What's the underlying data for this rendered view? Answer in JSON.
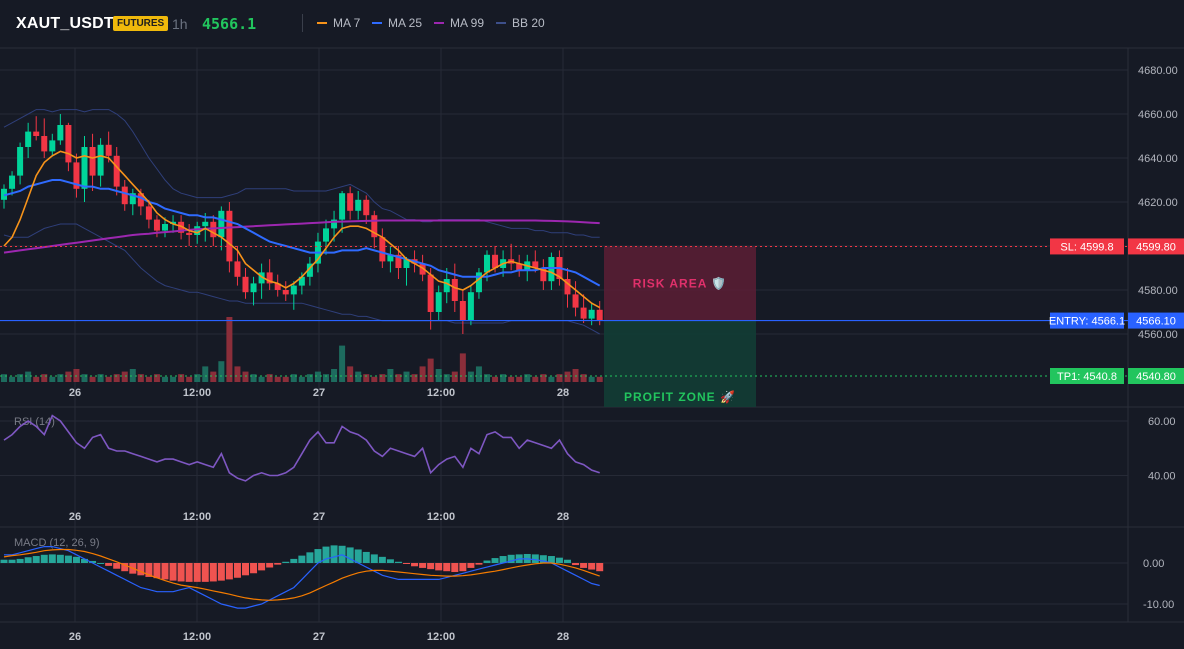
{
  "header": {
    "symbol": "XAUT_USDT",
    "badge": "FUTURES",
    "timeframe": "1h",
    "price": "4566.1",
    "legend": [
      {
        "label": "MA 7",
        "color": "#f7931a"
      },
      {
        "label": "MA 25",
        "color": "#2f6bff"
      },
      {
        "label": "MA 99",
        "color": "#9c27b0"
      },
      {
        "label": "BB 20",
        "color": "#3d4f8a"
      }
    ]
  },
  "colors": {
    "up": "#00d49a",
    "down": "#f23645",
    "vol_up": "#1d6b5e",
    "vol_down": "#8b2e3a",
    "rsi": "#7e57c2",
    "macd_line": "#2962ff",
    "signal_line": "#f57c00",
    "hist_pos": "#26a69a",
    "hist_neg": "#ef5350"
  },
  "price_axis": {
    "ticks": [
      "4680.00",
      "4660.00",
      "4640.00",
      "4620.00",
      "4600.00",
      "4580.00",
      "4560.00"
    ],
    "range": [
      4555,
      4685
    ]
  },
  "levels": {
    "sl": {
      "value": 4599.8,
      "tag": "SL: 4599.8",
      "price": "4599.80",
      "color": "#f23645"
    },
    "entry": {
      "value": 4566.1,
      "tag": "ENTRY: 4566.1",
      "price": "4566.10",
      "color": "#2962ff"
    },
    "tp1": {
      "value": 4540.8,
      "tag": "TP1: 4540.8",
      "price": "4540.80",
      "color": "#22c55e"
    }
  },
  "zones": {
    "risk_label": "RISK AREA 🛡️",
    "profit_label": "PROFIT ZONE 🚀"
  },
  "time_labels": [
    "26",
    "12:00",
    "27",
    "12:00",
    "28"
  ],
  "rsi": {
    "label": "RSI (14)",
    "ticks": [
      "60.00",
      "40.00"
    ],
    "range": [
      35,
      65
    ]
  },
  "macd": {
    "label": "MACD (12, 26, 9)",
    "ticks": [
      "0.00",
      "-10.00"
    ],
    "range": [
      -12,
      6
    ]
  },
  "chart_data": {
    "candles": [
      [
        4621,
        4628,
        4617,
        4626
      ],
      [
        4626,
        4634,
        4623,
        4632
      ],
      [
        4632,
        4647,
        4628,
        4645
      ],
      [
        4645,
        4656,
        4640,
        4652
      ],
      [
        4652,
        4659,
        4648,
        4650
      ],
      [
        4650,
        4658,
        4640,
        4643
      ],
      [
        4643,
        4651,
        4641,
        4648
      ],
      [
        4648,
        4660,
        4646,
        4655
      ],
      [
        4655,
        4656,
        4634,
        4638
      ],
      [
        4638,
        4642,
        4622,
        4626
      ],
      [
        4626,
        4650,
        4620,
        4645
      ],
      [
        4645,
        4651,
        4625,
        4632
      ],
      [
        4632,
        4649,
        4627,
        4646
      ],
      [
        4646,
        4652,
        4638,
        4641
      ],
      [
        4641,
        4645,
        4623,
        4627
      ],
      [
        4627,
        4630,
        4616,
        4619
      ],
      [
        4619,
        4626,
        4614,
        4624
      ],
      [
        4624,
        4626,
        4614,
        4618
      ],
      [
        4618,
        4621,
        4608,
        4612
      ],
      [
        4612,
        4614,
        4604,
        4607
      ],
      [
        4607,
        4613,
        4604,
        4610
      ],
      [
        4610,
        4614,
        4606,
        4611
      ],
      [
        4611,
        4614,
        4603,
        4606
      ],
      [
        4606,
        4610,
        4600,
        4605
      ],
      [
        4605,
        4611,
        4601,
        4609
      ],
      [
        4609,
        4615,
        4602,
        4611
      ],
      [
        4611,
        4614,
        4600,
        4604
      ],
      [
        4604,
        4618,
        4598,
        4616
      ],
      [
        4616,
        4620,
        4588,
        4593
      ],
      [
        4593,
        4600,
        4582,
        4586
      ],
      [
        4586,
        4590,
        4576,
        4579
      ],
      [
        4579,
        4586,
        4573,
        4583
      ],
      [
        4583,
        4592,
        4576,
        4588
      ],
      [
        4588,
        4594,
        4580,
        4583
      ],
      [
        4583,
        4587,
        4577,
        4580
      ],
      [
        4580,
        4584,
        4575,
        4578
      ],
      [
        4578,
        4584,
        4571,
        4582
      ],
      [
        4582,
        4588,
        4578,
        4586
      ],
      [
        4586,
        4595,
        4582,
        4592
      ],
      [
        4592,
        4606,
        4588,
        4602
      ],
      [
        4602,
        4612,
        4596,
        4608
      ],
      [
        4608,
        4616,
        4602,
        4612
      ],
      [
        4612,
        4625,
        4606,
        4624
      ],
      [
        4624,
        4627,
        4612,
        4616
      ],
      [
        4616,
        4625,
        4612,
        4621
      ],
      [
        4621,
        4623,
        4610,
        4614
      ],
      [
        4614,
        4616,
        4599,
        4604
      ],
      [
        4604,
        4608,
        4590,
        4593
      ],
      [
        4593,
        4600,
        4588,
        4596
      ],
      [
        4596,
        4600,
        4585,
        4590
      ],
      [
        4590,
        4595,
        4582,
        4594
      ],
      [
        4594,
        4598,
        4588,
        4592
      ],
      [
        4592,
        4596,
        4584,
        4587
      ],
      [
        4587,
        4590,
        4562,
        4570
      ],
      [
        4570,
        4582,
        4566,
        4579
      ],
      [
        4579,
        4590,
        4574,
        4585
      ],
      [
        4585,
        4592,
        4570,
        4575
      ],
      [
        4575,
        4580,
        4560,
        4566
      ],
      [
        4566,
        4582,
        4564,
        4579
      ],
      [
        4579,
        4590,
        4576,
        4588
      ],
      [
        4588,
        4598,
        4584,
        4596
      ],
      [
        4596,
        4600,
        4588,
        4590
      ],
      [
        4590,
        4598,
        4586,
        4594
      ],
      [
        4594,
        4601,
        4589,
        4592
      ],
      [
        4592,
        4596,
        4586,
        4589
      ],
      [
        4589,
        4596,
        4584,
        4593
      ],
      [
        4593,
        4598,
        4588,
        4590
      ],
      [
        4590,
        4594,
        4580,
        4584
      ],
      [
        4584,
        4597,
        4580,
        4595
      ],
      [
        4595,
        4598,
        4582,
        4585
      ],
      [
        4585,
        4590,
        4572,
        4578
      ],
      [
        4578,
        4584,
        4568,
        4572
      ],
      [
        4572,
        4578,
        4565,
        4567
      ],
      [
        4567,
        4574,
        4564,
        4571
      ],
      [
        4571,
        4575,
        4564,
        4566
      ]
    ],
    "volume": [
      3,
      2,
      3,
      4,
      2,
      3,
      2,
      3,
      4,
      5,
      3,
      2,
      3,
      2,
      3,
      4,
      5,
      3,
      2,
      3,
      2,
      2,
      3,
      2,
      3,
      6,
      4,
      8,
      25,
      6,
      4,
      3,
      2,
      3,
      2,
      2,
      3,
      2,
      3,
      4,
      3,
      5,
      14,
      6,
      4,
      3,
      2,
      3,
      5,
      3,
      4,
      3,
      6,
      9,
      5,
      3,
      4,
      11,
      4,
      6,
      3,
      2,
      3,
      2,
      2,
      3,
      2,
      3,
      2,
      3,
      4,
      5,
      3,
      2,
      2
    ],
    "ma7": [
      4600,
      4604,
      4612,
      4622,
      4632,
      4638,
      4641,
      4643,
      4642,
      4640,
      4641,
      4640,
      4641,
      4640,
      4636,
      4632,
      4628,
      4624,
      4620,
      4615,
      4612,
      4610,
      4609,
      4607,
      4606,
      4608,
      4606,
      4604,
      4601,
      4598,
      4592,
      4589,
      4586,
      4584,
      4583,
      4581,
      4583,
      4586,
      4590,
      4594,
      4599,
      4604,
      4608,
      4609,
      4609,
      4608,
      4606,
      4604,
      4601,
      4598,
      4594,
      4592,
      4590,
      4587,
      4584,
      4583,
      4581,
      4580,
      4582,
      4585,
      4588,
      4590,
      4592,
      4593,
      4592,
      4591,
      4590,
      4589,
      4588,
      4586,
      4583,
      4580,
      4577,
      4574,
      4572
    ],
    "ma25": [
      4623,
      4624,
      4625,
      4627,
      4628,
      4629,
      4630,
      4630,
      4629,
      4628,
      4627,
      4627,
      4626,
      4626,
      4625,
      4624,
      4623,
      4622,
      4620,
      4619,
      4617,
      4616,
      4615,
      4614,
      4614,
      4613,
      4613,
      4612,
      4611,
      4610,
      4608,
      4606,
      4604,
      4602,
      4601,
      4600,
      4599,
      4598,
      4597,
      4597,
      4597,
      4597,
      4598,
      4598,
      4598,
      4599,
      4598,
      4597,
      4596,
      4595,
      4594,
      4593,
      4592,
      4591,
      4589,
      4588,
      4587,
      4586,
      4586,
      4586,
      4586,
      4587,
      4588,
      4588,
      4589,
      4589,
      4589,
      4590,
      4590,
      4590,
      4589,
      4588,
      4586,
      4584,
      4582
    ],
    "ma99": [
      4597,
      4597.5,
      4598,
      4598.5,
      4599,
      4599.5,
      4600,
      4600.5,
      4601,
      4601.5,
      4602,
      4602.5,
      4603,
      4603.5,
      4604,
      4604.5,
      4605,
      4605.3,
      4605.6,
      4606,
      4606.3,
      4606.6,
      4607,
      4607.3,
      4607.6,
      4607.8,
      4608,
      4608.2,
      4608.4,
      4608.6,
      4608.8,
      4609,
      4609.2,
      4609.4,
      4609.6,
      4609.8,
      4610,
      4610.2,
      4610.4,
      4610.6,
      4610.8,
      4611,
      4611.1,
      4611.2,
      4611.3,
      4611.4,
      4611.5,
      4611.6,
      4611.6,
      4611.6,
      4611.6,
      4611.6,
      4611.6,
      4611.6,
      4611.6,
      4611.6,
      4611.6,
      4611.6,
      4611.6,
      4611.6,
      4611.6,
      4611.6,
      4611.6,
      4611.6,
      4611.6,
      4611.6,
      4611.6,
      4611.5,
      4611.4,
      4611.3,
      4611.2,
      4611,
      4610.8,
      4610.6,
      4610.4
    ],
    "bb_upper": [
      4654,
      4656,
      4658,
      4660,
      4662,
      4662,
      4661,
      4662,
      4662,
      4662,
      4661,
      4662,
      4662,
      4662,
      4660,
      4657,
      4652,
      4646,
      4640,
      4635,
      4630,
      4626,
      4624,
      4623,
      4622,
      4622,
      4622,
      4622,
      4623,
      4624,
      4626,
      4626,
      4626,
      4626,
      4626,
      4626,
      4625,
      4625,
      4625,
      4625,
      4625,
      4626,
      4627,
      4628,
      4626,
      4624,
      4620,
      4617,
      4616,
      4614,
      4612,
      4612,
      4611,
      4611,
      4612,
      4612,
      4612,
      4612,
      4612,
      4612,
      4611,
      4610,
      4609,
      4608,
      4608,
      4608,
      4607,
      4607,
      4606,
      4606,
      4606,
      4605,
      4605,
      4604,
      4604
    ],
    "bb_lower": [
      4605,
      4604,
      4604,
      4604,
      4606,
      4608,
      4609,
      4610,
      4610,
      4610,
      4608,
      4606,
      4604,
      4602,
      4600,
      4598,
      4594,
      4590,
      4587,
      4584,
      4582,
      4581,
      4580,
      4579,
      4579,
      4578,
      4577,
      4576,
      4575,
      4575,
      4574,
      4574,
      4574,
      4574,
      4574,
      4574,
      4574,
      4574,
      4573,
      4572,
      4571,
      4570,
      4569,
      4569,
      4568,
      4568,
      4567,
      4566,
      4566,
      4566,
      4566,
      4566,
      4566,
      4566,
      4566,
      4566,
      4565,
      4565,
      4565,
      4565,
      4565,
      4565,
      4565,
      4566,
      4566,
      4566,
      4566,
      4566,
      4566,
      4566,
      4566,
      4565,
      4564,
      4562,
      4560
    ],
    "rsi_values": [
      53,
      55,
      58,
      60,
      58,
      55,
      62,
      60,
      56,
      52,
      50,
      54,
      55,
      50,
      49,
      49,
      48,
      47,
      46,
      45,
      46,
      46,
      45,
      44,
      45,
      44,
      43,
      48,
      41,
      39,
      38,
      40,
      41,
      40,
      40,
      41,
      43,
      48,
      53,
      56,
      52,
      52,
      58,
      56,
      55,
      53,
      49,
      47,
      50,
      49,
      48,
      47,
      50,
      41,
      44,
      46,
      47,
      43,
      50,
      48,
      55,
      56,
      54,
      54,
      50,
      53,
      52,
      51,
      50,
      53,
      48,
      45,
      44,
      42,
      41
    ],
    "macd_line": [
      2,
      2,
      2.5,
      3,
      3.5,
      4,
      4,
      3.5,
      3,
      2,
      1,
      0,
      -1,
      -2,
      -3,
      -4,
      -5,
      -6,
      -6.5,
      -7,
      -7,
      -7,
      -6.5,
      -6,
      -7,
      -8,
      -9,
      -10,
      -10.5,
      -11,
      -11,
      -10.5,
      -10,
      -9,
      -8,
      -7,
      -6,
      -4,
      -2,
      0,
      1,
      1.5,
      2,
      1,
      0,
      -1,
      -2,
      -3,
      -3.5,
      -4,
      -4,
      -4,
      -4,
      -4,
      -4,
      -3.5,
      -3,
      -2.5,
      -2,
      -1.5,
      -1,
      -0.5,
      0,
      0.5,
      1,
      1,
      0.8,
      0.5,
      0,
      -1,
      -2,
      -3,
      -4,
      -5,
      -5.5
    ],
    "signal_line": [
      1.5,
      1.8,
      2,
      2.3,
      2.6,
      3,
      3.2,
      3.3,
      3.3,
      3.1,
      2.8,
      2.3,
      1.7,
      1,
      0.3,
      -0.5,
      -1.3,
      -2.1,
      -2.9,
      -3.6,
      -4.3,
      -4.9,
      -5.4,
      -5.7,
      -6,
      -6.4,
      -6.8,
      -7.2,
      -7.6,
      -8.1,
      -8.5,
      -8.8,
      -9,
      -9.1,
      -9,
      -8.8,
      -8.5,
      -8,
      -7.3,
      -6.4,
      -5.5,
      -4.6,
      -3.7,
      -3,
      -2.4,
      -2,
      -1.8,
      -1.8,
      -2,
      -2.2,
      -2.4,
      -2.6,
      -2.8,
      -3,
      -3.1,
      -3.2,
      -3.2,
      -3.1,
      -2.9,
      -2.6,
      -2.3,
      -2,
      -1.6,
      -1.2,
      -0.8,
      -0.5,
      -0.2,
      0,
      0,
      -0.3,
      -0.7,
      -1.2,
      -1.8,
      -2.5,
      -3.2
    ],
    "histogram": [
      0.8,
      0.8,
      1,
      1.4,
      1.7,
      2,
      2.1,
      2,
      1.8,
      1.5,
      1,
      0.5,
      0,
      -0.7,
      -1.4,
      -2,
      -2.6,
      -3,
      -3.4,
      -3.7,
      -4,
      -4.3,
      -4.5,
      -4.6,
      -4.6,
      -4.6,
      -4.5,
      -4.3,
      -4,
      -3.6,
      -3,
      -2.5,
      -1.8,
      -1.1,
      -0.4,
      0.3,
      1,
      1.8,
      2.6,
      3.4,
      4,
      4.3,
      4.2,
      3.8,
      3.3,
      2.7,
      2.1,
      1.5,
      0.9,
      0.3,
      -0.2,
      -0.8,
      -1.2,
      -1.5,
      -1.8,
      -2,
      -2.2,
      -2,
      -1.2,
      -0.4,
      0.6,
      1.2,
      1.7,
      2,
      2.1,
      2.2,
      2.1,
      1.9,
      1.7,
      1.3,
      0.8,
      -0.5,
      -1.2,
      -1.6,
      -2
    ]
  }
}
